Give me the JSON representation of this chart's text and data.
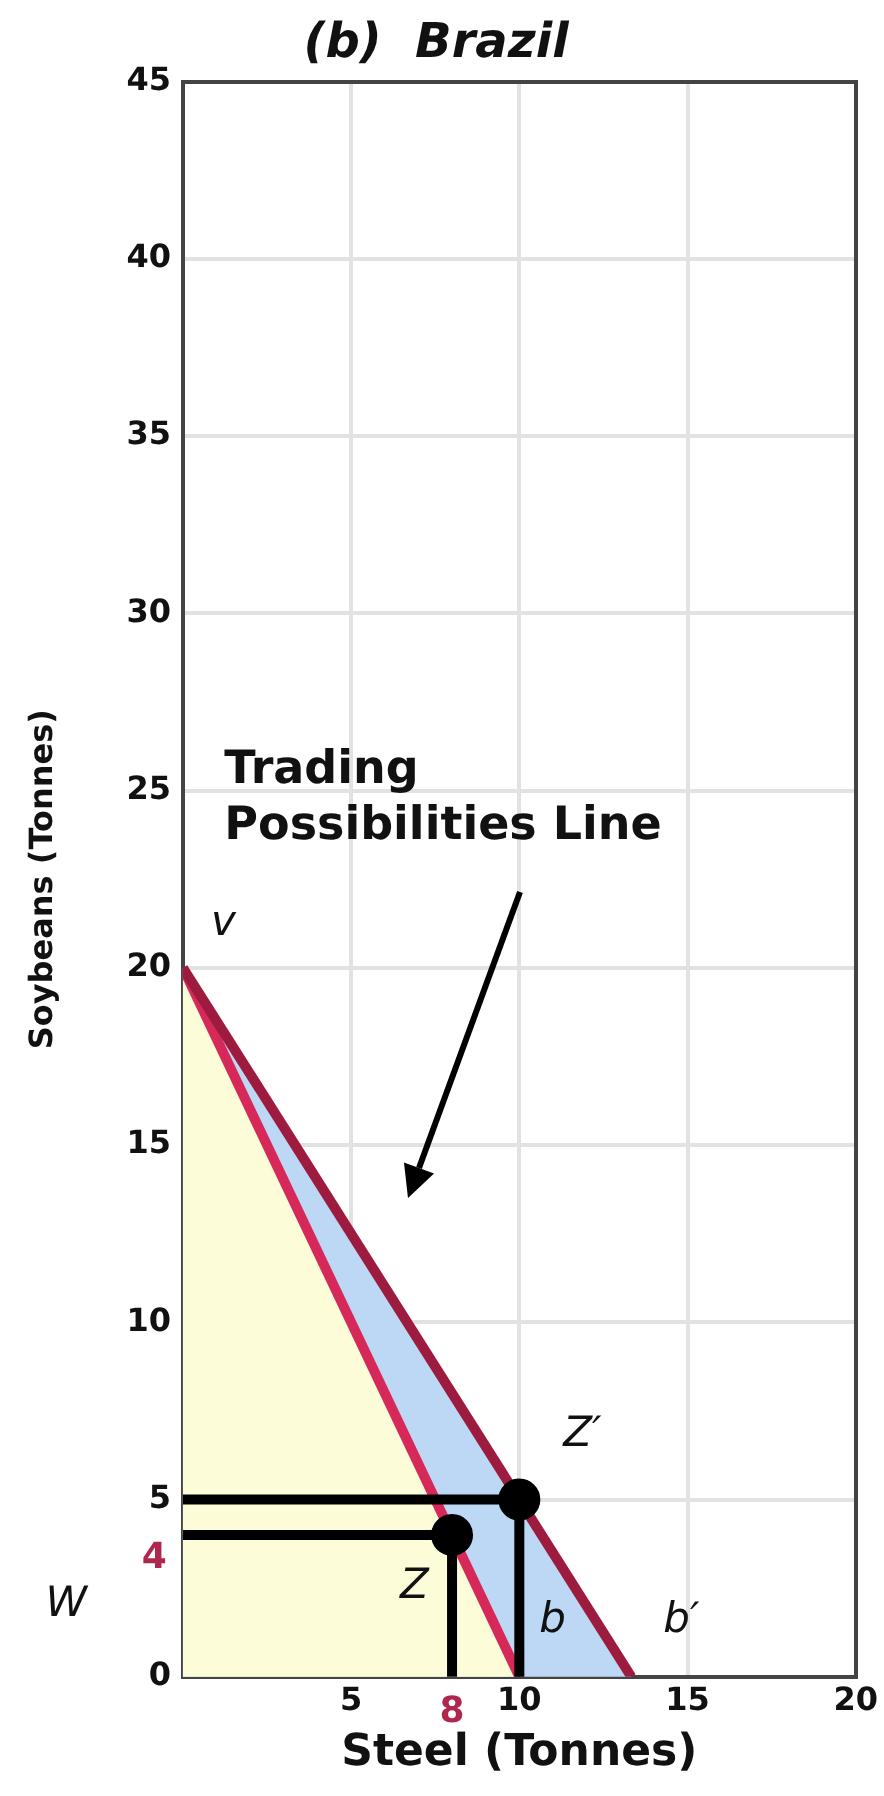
{
  "chart_data": {
    "type": "line",
    "title": "(b)  Brazil",
    "xlabel": "Steel (Tonnes)",
    "ylabel": "Soybeans (Tonnes)",
    "xlim": [
      0,
      20
    ],
    "xticks": [
      {
        "value": 0,
        "label": null
      },
      5,
      10,
      15,
      20
    ],
    "ylim": [
      0,
      45
    ],
    "yticks": [
      0,
      5,
      10,
      15,
      20,
      25,
      30,
      35,
      40,
      45
    ],
    "grid": true,
    "legend": false,
    "series": [
      {
        "color": "#d6295a",
        "x": [
          0,
          10
        ],
        "values": [
          20,
          0
        ]
      },
      {
        "color": "#9e1b40",
        "x": [
          0,
          13.33
        ],
        "values": [
          20,
          0
        ]
      },
      {
        "color": "#000000",
        "x": [
          0,
          8,
          8
        ],
        "values": [
          4,
          4,
          0
        ]
      },
      {
        "color": "#000000",
        "x": [
          0,
          10,
          10
        ],
        "values": [
          5,
          5,
          0
        ]
      },
      {
        "type": "scatter",
        "color": "#000000",
        "x": [
          8,
          10
        ],
        "values": [
          4,
          5
        ]
      }
    ],
    "annotations": [
      {
        "text": "v",
        "x": 0,
        "y": 20
      },
      {
        "text": "Z′",
        "x": 10,
        "y": 5
      },
      {
        "text": "Z",
        "x": 8,
        "y": 4
      },
      {
        "text": "b",
        "x": 10,
        "y": 0
      },
      {
        "text": "b′",
        "x": 13.33,
        "y": 0
      },
      "W",
      {
        "text": "8",
        "x": 8,
        "y": 0
      },
      {
        "text": "4",
        "x": 0,
        "y": 4
      },
      "Trading\nPossibilities Line"
    ]
  }
}
